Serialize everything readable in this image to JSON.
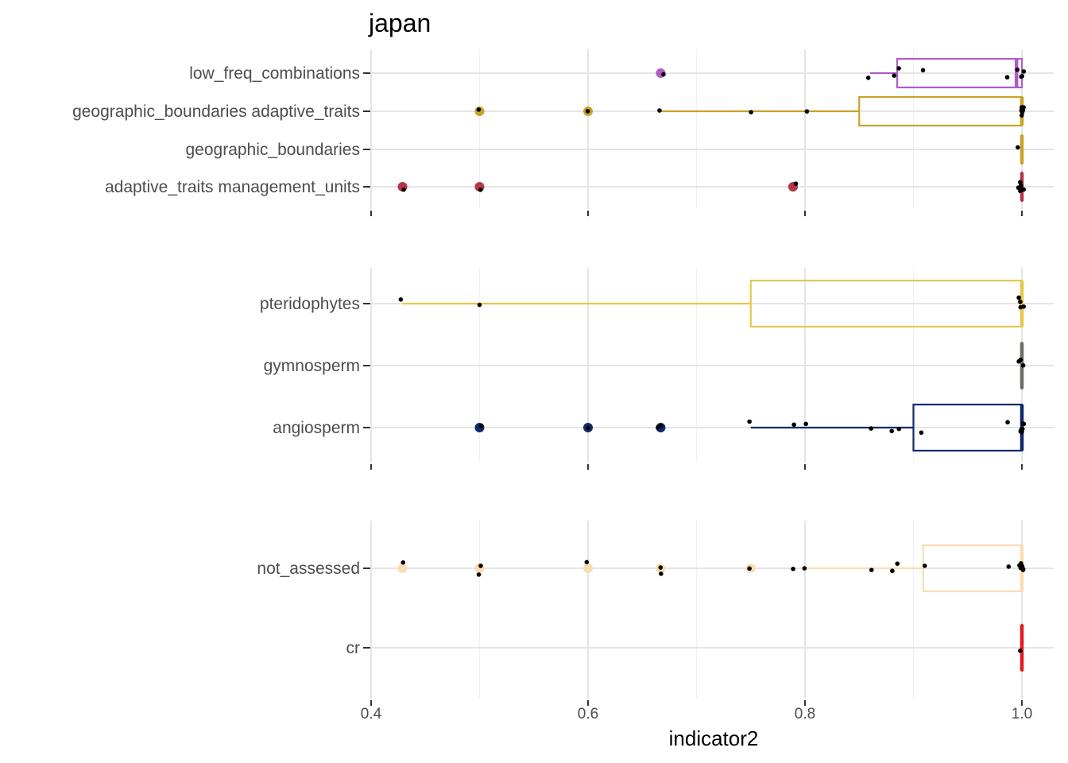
{
  "chart_data": {
    "type": "boxplot",
    "title": "japan",
    "xlabel": "indicator2",
    "ylabel": "",
    "xlim": [
      0.4,
      1.0
    ],
    "x_ticks": [
      "0.4",
      "0.6",
      "0.8",
      "1.0"
    ],
    "x_tick_values": [
      0.4,
      0.6,
      0.8,
      1.0
    ],
    "grid": true,
    "legend": "none",
    "panels": [
      {
        "categories": [
          {
            "name": "low_freq_combinations",
            "color": "#B05CC6",
            "box": {
              "q1": 0.885,
              "median": 0.995,
              "q3": 1.0,
              "lower": 0.86,
              "upper": 1.0
            },
            "outliers": [
              0.667
            ],
            "points": [
              0.668,
              0.86,
              0.882,
              0.887,
              0.909,
              0.986,
              0.997,
              1.0,
              1.0,
              1.0
            ]
          },
          {
            "name": "geographic_boundaries adaptive_traits",
            "color": "#C9A227",
            "box": {
              "q1": 0.85,
              "median": 1.0,
              "q3": 1.0,
              "lower": 0.667,
              "upper": 1.0
            },
            "outliers": [
              0.5,
              0.6
            ],
            "points": [
              0.5,
              0.6,
              0.667,
              0.75,
              0.8,
              0.998,
              1.0,
              1.0,
              1.0,
              1.0,
              1.0
            ]
          },
          {
            "name": "geographic_boundaries",
            "color": "#C9A227",
            "box": {
              "q1": 1.0,
              "median": 1.0,
              "q3": 1.0,
              "lower": 1.0,
              "upper": 1.0
            },
            "outliers": [],
            "points": [
              0.998
            ]
          },
          {
            "name": "adaptive_traits management_units",
            "color": "#B5364B",
            "box": {
              "q1": 1.0,
              "median": 1.0,
              "q3": 1.0,
              "lower": 1.0,
              "upper": 1.0
            },
            "outliers": [
              0.429,
              0.5,
              0.789
            ],
            "points": [
              0.429,
              0.5,
              0.79,
              0.998,
              1.0,
              1.0,
              1.0,
              1.0,
              1.0
            ]
          }
        ]
      },
      {
        "categories": [
          {
            "name": "pteridophytes",
            "color": "#E5C84A",
            "box": {
              "q1": 0.75,
              "median": 1.0,
              "q3": 1.0,
              "lower": 0.429,
              "upper": 1.0
            },
            "outliers": [],
            "points": [
              0.429,
              0.5,
              0.998,
              1.0,
              1.0,
              1.0
            ]
          },
          {
            "name": "gymnosperm",
            "color": "#6E6E66",
            "box": {
              "q1": 1.0,
              "median": 1.0,
              "q3": 1.0,
              "lower": 1.0,
              "upper": 1.0
            },
            "outliers": [],
            "points": [
              0.998,
              0.999,
              1.0
            ]
          },
          {
            "name": "angiosperm",
            "color": "#0D2A6B",
            "box": {
              "q1": 0.9,
              "median": 1.0,
              "q3": 1.0,
              "lower": 0.75,
              "upper": 1.0
            },
            "outliers": [
              0.5,
              0.6,
              0.667
            ],
            "points": [
              0.5,
              0.6,
              0.666,
              0.667,
              0.75,
              0.79,
              0.8,
              0.86,
              0.88,
              0.886,
              0.909,
              0.986,
              0.998,
              1.0,
              1.0,
              1.0,
              1.0,
              1.0,
              1.0
            ]
          }
        ]
      },
      {
        "categories": [
          {
            "name": "not_assessed",
            "color": "#FBDDB2",
            "box": {
              "q1": 0.909,
              "median": 1.0,
              "q3": 1.0,
              "lower": 0.8,
              "upper": 1.0
            },
            "outliers": [
              0.429,
              0.5,
              0.6,
              0.667,
              0.75
            ],
            "points": [
              0.429,
              0.5,
              0.5,
              0.6,
              0.667,
              0.667,
              0.75,
              0.789,
              0.8,
              0.86,
              0.88,
              0.886,
              0.909,
              0.986,
              0.998,
              1.0,
              1.0,
              1.0,
              1.0,
              1.0
            ]
          },
          {
            "name": "cr",
            "color": "#E41A1C",
            "box": {
              "q1": 1.0,
              "median": 1.0,
              "q3": 1.0,
              "lower": 1.0,
              "upper": 1.0
            },
            "outliers": [],
            "points": [
              1.0
            ]
          }
        ]
      }
    ]
  }
}
